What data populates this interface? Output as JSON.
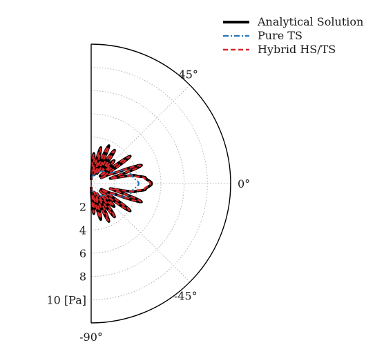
{
  "chart_data": {
    "type": "line",
    "subtype": "polar-half",
    "title": "",
    "theta_range_deg": [
      -90,
      90
    ],
    "r_range": [
      0,
      12
    ],
    "radial_ticks": [
      2,
      4,
      6,
      8,
      10
    ],
    "radial_tick_labels": [
      "2",
      "4",
      "6",
      "8",
      "10 [Pa]"
    ],
    "angular_ticks": [
      45,
      0,
      -45,
      -90
    ],
    "angular_tick_labels": [
      "45°",
      "0°",
      "-45°",
      "-90°"
    ],
    "grid": true,
    "legend_position": "top-right",
    "series": [
      {
        "name": "Analytical Solution",
        "color": "#000000",
        "style": "solid",
        "theta": [
          0,
          6,
          10,
          15,
          20,
          25,
          30,
          35,
          40,
          45,
          50,
          55,
          60,
          65,
          70,
          75,
          80,
          85,
          90
        ],
        "r": [
          5.2,
          4.7,
          3.9,
          1.7,
          4.6,
          2.0,
          1.0,
          4.1,
          1.0,
          2.8,
          1.5,
          3.5,
          1.0,
          3.6,
          0.8,
          3.2,
          1.0,
          2.6,
          0.3
        ]
      },
      {
        "name": "Pure TS",
        "color": "#1f77b4",
        "style": "dashdot",
        "theta": [
          0,
          10,
          20,
          30,
          45,
          60,
          75,
          90
        ],
        "r": [
          4.1,
          3.6,
          3.3,
          1.7,
          1.5,
          1.1,
          0.7,
          0.5
        ]
      },
      {
        "name": "Hybrid HS/TS",
        "color": "#d62728",
        "style": "dashed",
        "theta": [
          0,
          6,
          10,
          15,
          20,
          25,
          30,
          35,
          40,
          45,
          50,
          55,
          60,
          65,
          70,
          75,
          80,
          85,
          90
        ],
        "r": [
          5.1,
          4.6,
          3.8,
          1.7,
          4.5,
          2.0,
          1.0,
          4.0,
          1.0,
          2.7,
          1.5,
          3.4,
          1.0,
          3.5,
          0.8,
          3.1,
          1.0,
          2.5,
          0.3
        ]
      }
    ]
  }
}
